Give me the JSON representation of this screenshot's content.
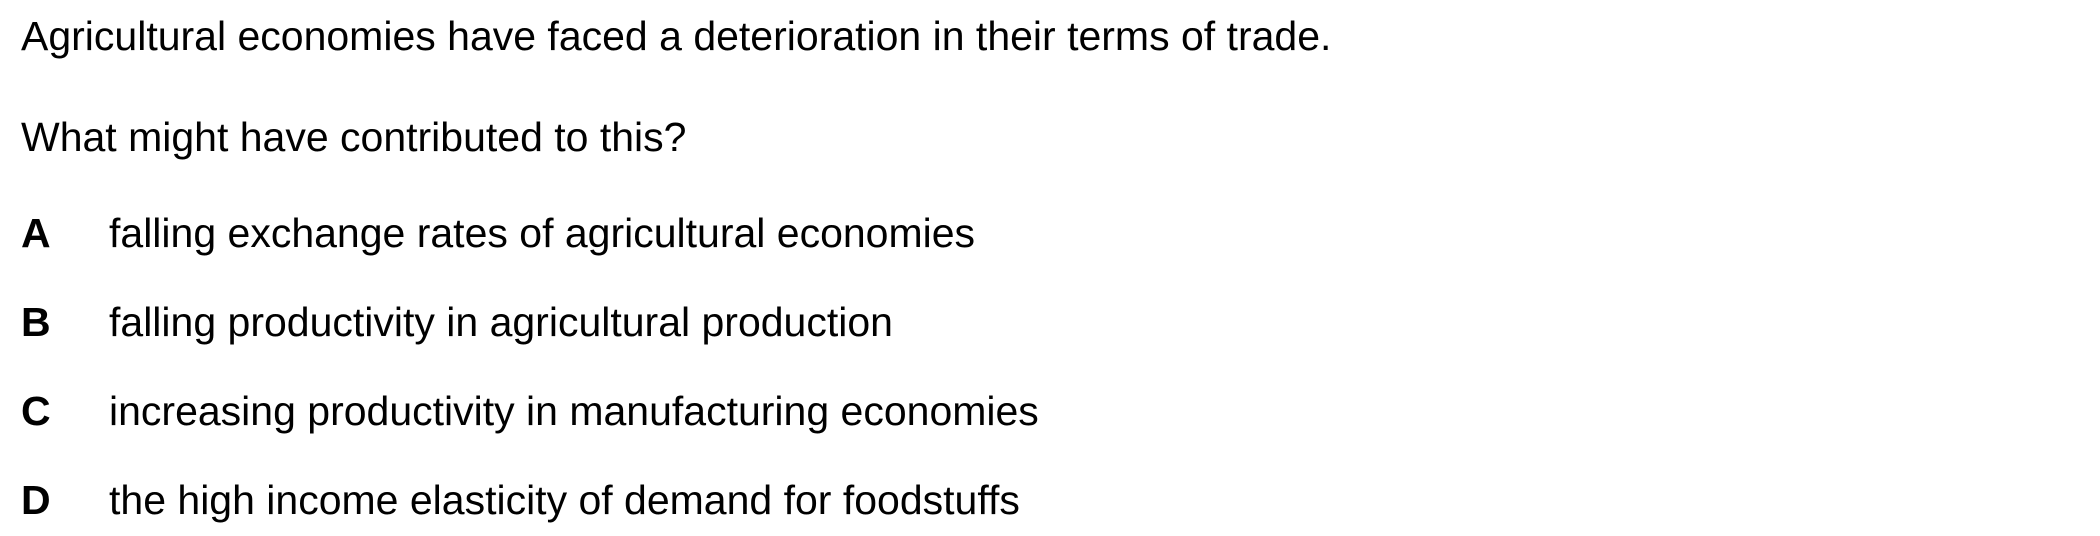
{
  "question": {
    "stem": "Agricultural economies have faced a deterioration in their terms of trade.",
    "prompt": "What might have contributed to this?",
    "options": [
      {
        "letter": "A",
        "text": "falling exchange rates of agricultural economies"
      },
      {
        "letter": "B",
        "text": "falling productivity in agricultural production"
      },
      {
        "letter": "C",
        "text": "increasing productivity in manufacturing economies"
      },
      {
        "letter": "D",
        "text": "the high income elasticity of demand for foodstuffs"
      }
    ]
  }
}
